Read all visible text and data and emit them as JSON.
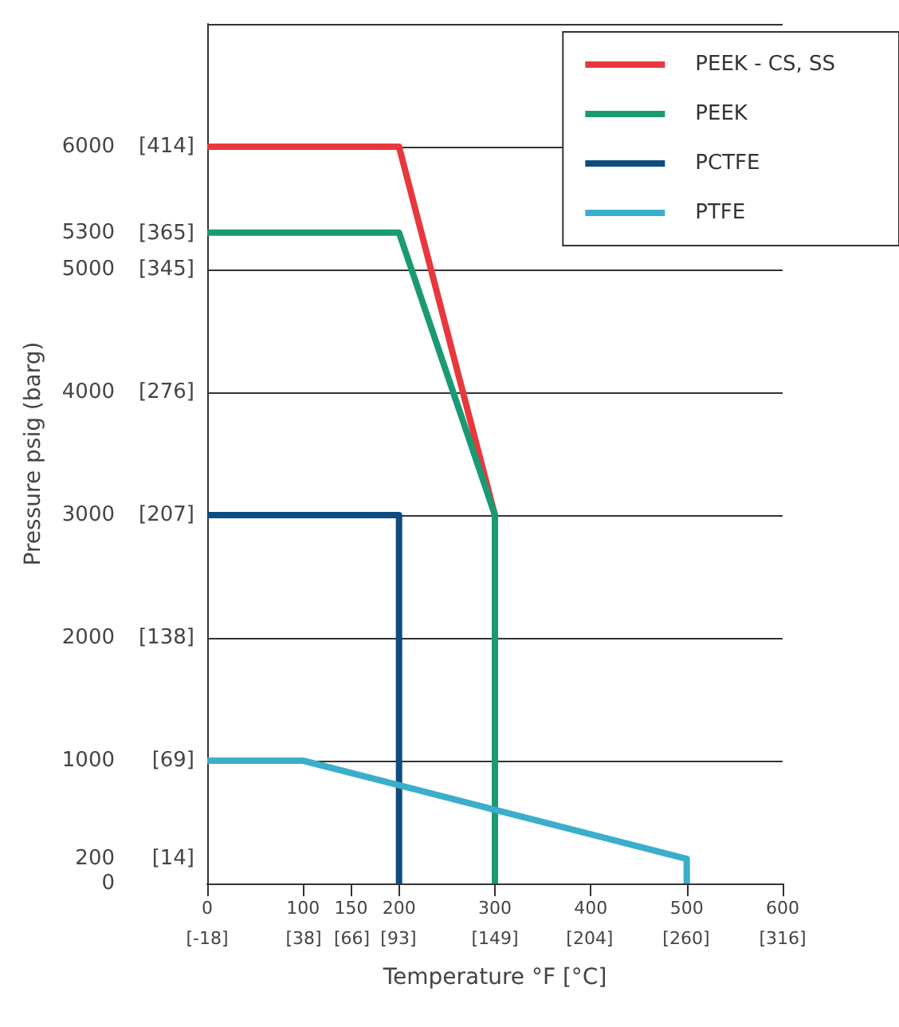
{
  "chart_data": {
    "type": "line",
    "xlabel": "Temperature °F [°C]",
    "ylabel": "Pressure psig (barg)",
    "series": [
      {
        "name": "PEEK - CS, SS",
        "color": "#e8383d",
        "x": [
          0,
          200,
          300,
          300
        ],
        "values": [
          6000,
          6000,
          3000,
          0
        ]
      },
      {
        "name": "PEEK",
        "color": "#1a9a73",
        "x": [
          0,
          200,
          300,
          300
        ],
        "values": [
          5300,
          5300,
          3000,
          0
        ]
      },
      {
        "name": "PCTFE",
        "color": "#0e4c7f",
        "x": [
          0,
          200,
          200
        ],
        "values": [
          3000,
          3000,
          0
        ]
      },
      {
        "name": "PTFE",
        "color": "#3aaecb",
        "x": [
          0,
          100,
          500,
          500
        ],
        "values": [
          1000,
          1000,
          200,
          0
        ]
      }
    ],
    "xlim": [
      0,
      600
    ],
    "xticks": [
      0,
      100,
      150,
      200,
      300,
      400,
      500,
      600
    ],
    "x2lim": [
      -18,
      316
    ],
    "x2ticks": [
      {
        "value": -18,
        "label": "[-18]"
      },
      {
        "value": 38,
        "label": "[38]"
      },
      {
        "value": 66,
        "label": "[66]"
      },
      {
        "value": 93,
        "label": "[93]"
      },
      {
        "value": 149,
        "label": "[149]"
      },
      {
        "value": 204,
        "label": "[204]"
      },
      {
        "value": 260,
        "label": "[260]"
      },
      {
        "value": 316,
        "label": "[316]"
      }
    ],
    "ylim": [
      0,
      7000
    ],
    "yticks": [
      0,
      200,
      1000,
      2000,
      3000,
      4000,
      5000,
      5300,
      6000
    ],
    "y2lim": [
      0,
      483
    ],
    "y2ticks": [
      {
        "value": 14,
        "label": "[14]"
      },
      {
        "value": 69,
        "label": "[69]"
      },
      {
        "value": 138,
        "label": "[138]"
      },
      {
        "value": 207,
        "label": "[207]"
      },
      {
        "value": 276,
        "label": "[276]"
      },
      {
        "value": 345,
        "label": "[345]"
      },
      {
        "value": 365,
        "label": "[365]"
      },
      {
        "value": 414,
        "label": "[414]"
      }
    ],
    "grid": "y",
    "legend": "top right",
    "marker": "none",
    "line_style": "solid"
  }
}
